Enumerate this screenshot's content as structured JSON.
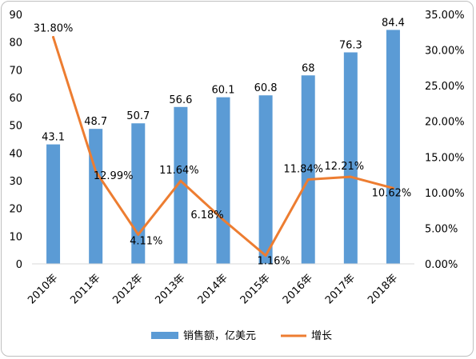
{
  "chart_data": {
    "type": "bar",
    "categories": [
      "2010年",
      "2011年",
      "2012年",
      "2013年",
      "2014年",
      "2015年",
      "2016年",
      "2017年",
      "2018年"
    ],
    "series": [
      {
        "name": "销售额，亿美元",
        "type": "bar",
        "axis": "left",
        "color": "#5b9bd5",
        "values": [
          43.1,
          48.7,
          50.7,
          56.6,
          60.1,
          60.8,
          68,
          76.3,
          84.4
        ],
        "labels": [
          "43.1",
          "48.7",
          "50.7",
          "56.6",
          "60.1",
          "60.8",
          "68",
          "76.3",
          "84.4"
        ]
      },
      {
        "name": "增长",
        "type": "line",
        "axis": "right",
        "color": "#ed7d31",
        "values": [
          31.8,
          12.99,
          4.11,
          11.64,
          6.18,
          1.16,
          11.84,
          12.21,
          10.62
        ],
        "labels": [
          "31.80%",
          "12.99%",
          "4.11%",
          "11.64%",
          "6.18%",
          "1.16%",
          "11.84%",
          "12.21%",
          "10.62%"
        ]
      }
    ],
    "y_left": {
      "min": 0,
      "max": 90,
      "step": 10,
      "ticks": [
        "0",
        "10",
        "20",
        "30",
        "40",
        "50",
        "60",
        "70",
        "80",
        "90"
      ]
    },
    "y_right": {
      "min": 0,
      "max": 35,
      "step": 5,
      "ticks": [
        "0.00%",
        "5.00%",
        "10.00%",
        "15.00%",
        "20.00%",
        "25.00%",
        "30.00%",
        "35.00%"
      ]
    },
    "grid": false,
    "legend_position": "bottom"
  }
}
